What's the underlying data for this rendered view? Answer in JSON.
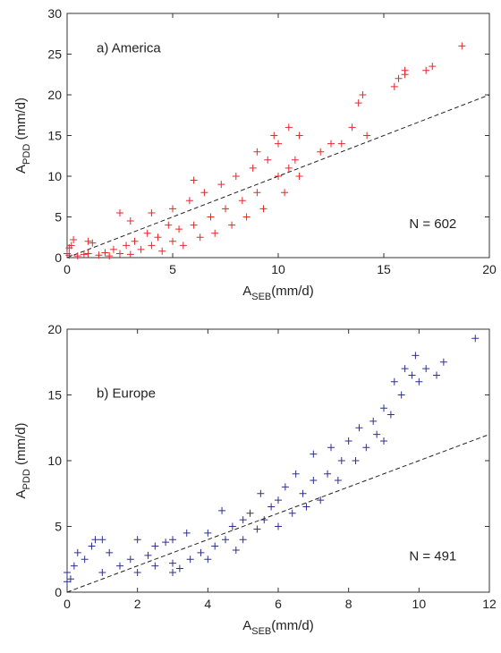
{
  "chart_data": [
    {
      "type": "scatter",
      "annotation": "a) America",
      "count_label": "N = 602",
      "xlabel": "A",
      "xlabel_sub": "SEB",
      "xlabel_unit": "(mm/d)",
      "ylabel": "A",
      "ylabel_sub": "PDD",
      "ylabel_unit": " (mm/d)",
      "color": "#e8262a",
      "marker": "plus",
      "xlim": [
        0,
        20
      ],
      "ylim": [
        0,
        30
      ],
      "xticks": [
        0,
        5,
        10,
        15,
        20
      ],
      "yticks": [
        0,
        5,
        10,
        15,
        20,
        25,
        30
      ],
      "reference_line": {
        "x": [
          0,
          20
        ],
        "y": [
          0,
          20
        ],
        "style": "dashed"
      },
      "x": [
        0.1,
        0.2,
        0.3,
        0.5,
        0.8,
        1,
        1.2,
        1.5,
        1.8,
        2,
        2.2,
        2.5,
        2.8,
        3,
        3.2,
        3.5,
        3.8,
        4,
        4,
        4.3,
        4.5,
        4.8,
        5,
        5,
        5.3,
        5.5,
        5.8,
        6,
        6.3,
        6.5,
        6.8,
        7,
        7.3,
        7.5,
        7.8,
        8,
        8.3,
        8.5,
        8.8,
        9,
        9,
        9.3,
        9.5,
        9.8,
        10,
        10,
        10.3,
        10.5,
        10.5,
        10.8,
        11,
        11,
        12,
        12.5,
        13,
        13.5,
        13.8,
        14,
        14.2,
        15.5,
        15.7,
        16,
        16,
        17,
        17.3,
        18.7,
        2.5,
        3,
        0,
        0.1,
        1,
        6
      ],
      "values": [
        0.3,
        1.5,
        2.2,
        0.2,
        0.4,
        0.5,
        1.8,
        0.3,
        0.6,
        0.2,
        1,
        0.5,
        1.5,
        0.4,
        2,
        1,
        3,
        1.5,
        5.5,
        2.5,
        0.8,
        4,
        2,
        6,
        3.5,
        1.5,
        7,
        4,
        2.5,
        8,
        5,
        3,
        9,
        6,
        4,
        10,
        7,
        5,
        11,
        8,
        13,
        6,
        12,
        15,
        10,
        14,
        8,
        16,
        11,
        12,
        15,
        10,
        13,
        14,
        14,
        16,
        19,
        20,
        15,
        21,
        22,
        23,
        22.5,
        23,
        23.5,
        26,
        5.5,
        4.5,
        0.5,
        1.2,
        2,
        9.5
      ]
    },
    {
      "type": "scatter",
      "annotation": "b) Europe",
      "count_label": "N = 491",
      "xlabel": "A",
      "xlabel_sub": "SEB",
      "xlabel_unit": "(mm/d)",
      "ylabel": "A",
      "ylabel_sub": "PDD",
      "ylabel_unit": " (mm/d)",
      "color": "#2e2e90",
      "marker": "plus",
      "xlim": [
        0,
        12
      ],
      "ylim": [
        0,
        20
      ],
      "xticks": [
        0,
        2,
        4,
        6,
        8,
        10,
        12
      ],
      "yticks": [
        0,
        5,
        10,
        15,
        20
      ],
      "reference_line": {
        "x": [
          0,
          12
        ],
        "y": [
          0,
          12
        ],
        "style": "dashed"
      },
      "x": [
        0,
        0,
        0.1,
        0.2,
        0.3,
        0.5,
        0.7,
        0.8,
        1,
        1,
        1.2,
        1.5,
        1.8,
        2,
        2,
        2.3,
        2.5,
        2.8,
        3,
        3,
        3.2,
        3.4,
        3.5,
        3.8,
        4,
        4,
        4.2,
        4.4,
        4.5,
        4.7,
        4.8,
        5,
        5,
        5.2,
        5.4,
        5.5,
        5.6,
        5.8,
        6,
        6,
        6.2,
        6.4,
        6.5,
        6.7,
        6.8,
        7,
        7,
        7.2,
        7.4,
        7.5,
        7.7,
        7.8,
        8,
        8.2,
        8.3,
        8.5,
        8.7,
        8.8,
        9,
        9,
        9.2,
        9.3,
        9.5,
        9.6,
        9.8,
        9.9,
        10,
        10.2,
        10.5,
        10.7,
        11.6,
        3,
        2.5
      ],
      "values": [
        0.8,
        1.5,
        1,
        2,
        3,
        2.5,
        3.5,
        4,
        4,
        1.5,
        3,
        2,
        2.5,
        4,
        1.5,
        2.8,
        2,
        3.8,
        2.2,
        4,
        1.8,
        4.5,
        2.5,
        3,
        4.5,
        2.5,
        3.5,
        6.2,
        4,
        5,
        3.2,
        5.5,
        4,
        6,
        4.8,
        7.5,
        5.5,
        6.5,
        7,
        5,
        8,
        6,
        9,
        7.5,
        6.5,
        8.5,
        10.5,
        7,
        9,
        11,
        8.5,
        10,
        11.5,
        10,
        12.5,
        11,
        13,
        12,
        14,
        11.5,
        13.5,
        16,
        15,
        17,
        16.5,
        18,
        16,
        17,
        16.5,
        17.5,
        19.3,
        1.5,
        3.5
      ]
    }
  ]
}
